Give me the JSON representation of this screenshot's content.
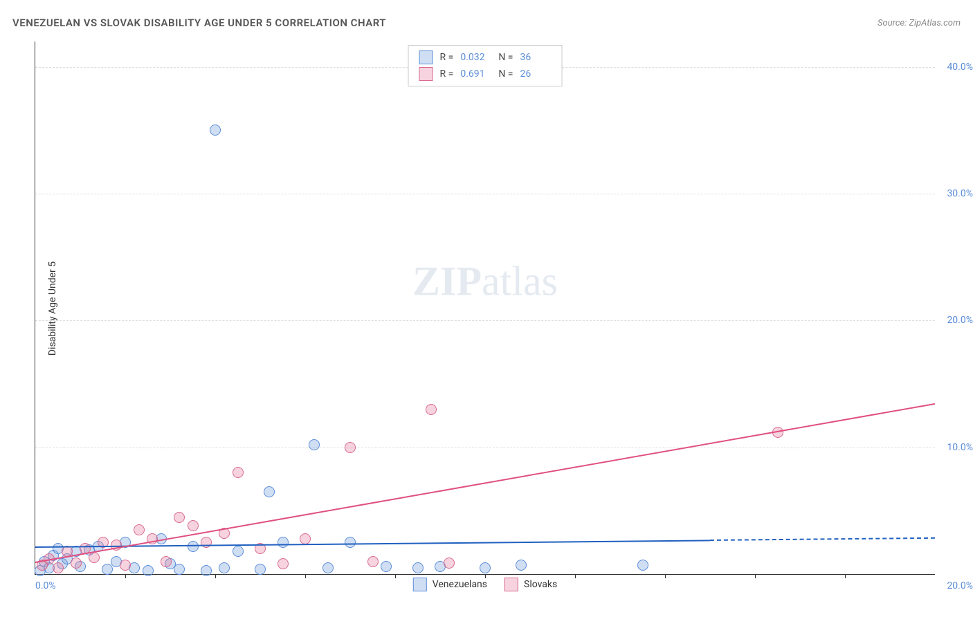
{
  "header": {
    "title": "VENEZUELAN VS SLOVAK DISABILITY AGE UNDER 5 CORRELATION CHART",
    "source_prefix": "Source: ",
    "source_name": "ZipAtlas.com"
  },
  "chart": {
    "type": "scatter",
    "ylabel": "Disability Age Under 5",
    "xlim": [
      0,
      20
    ],
    "ylim": [
      0,
      42
    ],
    "yticks": [
      10,
      20,
      30,
      40
    ],
    "ytick_labels": [
      "10.0%",
      "20.0%",
      "30.0%",
      "40.0%"
    ],
    "xtick_left": "0.0%",
    "xtick_right": "20.0%",
    "minor_xticks": [
      2,
      4,
      6,
      8,
      10,
      12,
      14,
      16,
      18
    ],
    "background_color": "#ffffff",
    "grid_color": "#dddddd",
    "point_radius": 8,
    "watermark": {
      "zip": "ZIP",
      "rest": "atlas"
    },
    "series": [
      {
        "name": "Venezuelans",
        "fill": "rgba(120,160,220,0.35)",
        "stroke": "#5a8dd8",
        "trend_color": "#2060c0",
        "trend_dash_after_x": 15,
        "trend": {
          "x1": 0,
          "y1": 2.2,
          "x2": 20,
          "y2": 2.9
        },
        "points": [
          [
            0.1,
            0.3
          ],
          [
            0.2,
            1.0
          ],
          [
            0.3,
            0.5
          ],
          [
            0.4,
            1.5
          ],
          [
            0.5,
            2.0
          ],
          [
            0.6,
            0.8
          ],
          [
            0.7,
            1.2
          ],
          [
            0.9,
            1.8
          ],
          [
            1.0,
            0.6
          ],
          [
            1.2,
            1.9
          ],
          [
            1.4,
            2.2
          ],
          [
            1.6,
            0.4
          ],
          [
            1.8,
            1.0
          ],
          [
            2.0,
            2.5
          ],
          [
            2.2,
            0.5
          ],
          [
            2.5,
            0.3
          ],
          [
            2.8,
            2.8
          ],
          [
            3.0,
            0.8
          ],
          [
            3.2,
            0.4
          ],
          [
            3.5,
            2.2
          ],
          [
            3.8,
            0.3
          ],
          [
            4.0,
            35.0
          ],
          [
            4.2,
            0.5
          ],
          [
            4.5,
            1.8
          ],
          [
            5.0,
            0.4
          ],
          [
            5.2,
            6.5
          ],
          [
            5.5,
            2.5
          ],
          [
            6.2,
            10.2
          ],
          [
            6.5,
            0.5
          ],
          [
            7.0,
            2.5
          ],
          [
            7.8,
            0.6
          ],
          [
            8.5,
            0.5
          ],
          [
            9.0,
            0.6
          ],
          [
            10.8,
            0.7
          ],
          [
            13.5,
            0.7
          ],
          [
            10.0,
            0.5
          ]
        ]
      },
      {
        "name": "Slovaks",
        "fill": "rgba(230,130,160,0.35)",
        "stroke": "#d86a90",
        "trend_color": "#e05080",
        "trend": {
          "x1": 0,
          "y1": 1.0,
          "x2": 20,
          "y2": 13.5
        },
        "points": [
          [
            0.15,
            0.7
          ],
          [
            0.3,
            1.2
          ],
          [
            0.5,
            0.5
          ],
          [
            0.7,
            1.8
          ],
          [
            0.9,
            0.9
          ],
          [
            1.1,
            2.0
          ],
          [
            1.3,
            1.3
          ],
          [
            1.5,
            2.5
          ],
          [
            1.8,
            2.3
          ],
          [
            2.0,
            0.7
          ],
          [
            2.3,
            3.5
          ],
          [
            2.6,
            2.8
          ],
          [
            2.9,
            1.0
          ],
          [
            3.2,
            4.5
          ],
          [
            3.5,
            3.8
          ],
          [
            3.8,
            2.5
          ],
          [
            4.2,
            3.2
          ],
          [
            4.5,
            8.0
          ],
          [
            5.0,
            2.0
          ],
          [
            5.5,
            0.8
          ],
          [
            6.0,
            2.8
          ],
          [
            7.0,
            10.0
          ],
          [
            7.5,
            1.0
          ],
          [
            8.8,
            13.0
          ],
          [
            9.2,
            0.9
          ],
          [
            16.5,
            11.2
          ]
        ]
      }
    ],
    "stat_legend": [
      {
        "swatch_fill": "rgba(120,160,220,0.35)",
        "swatch_stroke": "#5a8dd8",
        "r": "0.032",
        "n": "36"
      },
      {
        "swatch_fill": "rgba(230,130,160,0.35)",
        "swatch_stroke": "#d86a90",
        "r": "0.691",
        "n": "26"
      }
    ],
    "stat_labels": {
      "r": "R =",
      "n": "N ="
    }
  }
}
